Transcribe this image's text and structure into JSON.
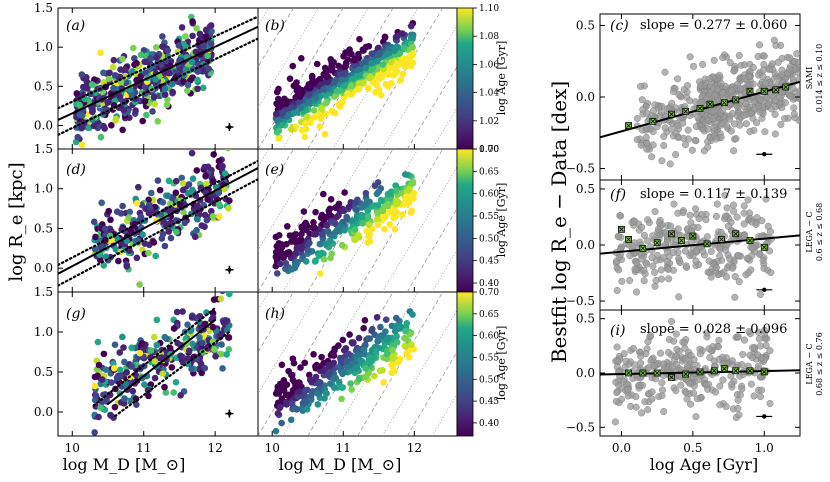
{
  "chart_data": [
    {
      "type": "scatter",
      "panel": "(a)",
      "xlabel": "log M_D [M_⊙]",
      "ylabel": "log R_e [kpc]",
      "xlim": [
        9.8,
        12.6
      ],
      "ylim": [
        -0.3,
        1.5
      ],
      "xticks": [
        "10",
        "11",
        "12"
      ],
      "yticks": [
        "0.0",
        "0.5",
        "1.0",
        "1.5"
      ],
      "color_by": "log Age [Gyr]",
      "series": [
        {
          "name": "best-fit relation",
          "style": "solid",
          "points": [
            [
              9.8,
              0.07
            ],
            [
              12.6,
              1.26
            ]
          ]
        },
        {
          "name": "upper scatter",
          "style": "dotted",
          "points": [
            [
              9.8,
              0.22
            ],
            [
              12.6,
              1.39
            ]
          ]
        },
        {
          "name": "lower scatter",
          "style": "dotted",
          "points": [
            [
              9.8,
              -0.12
            ],
            [
              12.6,
              1.11
            ]
          ]
        },
        {
          "name": "galaxies",
          "x_range": [
            10.0,
            12.4
          ],
          "y_range": [
            -0.3,
            1.4
          ],
          "trend_slope": 0.42
        }
      ],
      "error_bar": {
        "x": 12.2,
        "y": -0.02
      }
    },
    {
      "type": "scatter",
      "panel": "(b)",
      "xlim": [
        9.8,
        12.6
      ],
      "ylim": [
        -0.3,
        1.5
      ],
      "colorbar": {
        "label": "log Age [Gyr]",
        "range": [
          1.0,
          1.1
        ],
        "ticks": [
          "1.00",
          "1.02",
          "1.04",
          "1.06",
          "1.08",
          "1.10"
        ]
      },
      "description_series": [
        {
          "name": "smoothed age map",
          "x_range": [
            10.0,
            12.1
          ],
          "y_range": [
            0.0,
            1.4
          ]
        }
      ]
    },
    {
      "type": "scatter",
      "panel": "(c)",
      "title": "slope = 0.277 ± 0.060",
      "annotation": "SAMI",
      "annotation2": "0.014 ≤ z ≤ 0.10",
      "xlim": [
        -0.15,
        1.25
      ],
      "ylim": [
        -0.58,
        0.58
      ],
      "xticks": [
        "0.0",
        "0.5",
        "1.0"
      ],
      "yticks": [
        "−0.5",
        "0.0",
        "0.5"
      ],
      "slope": 0.277,
      "intercept": -0.24,
      "binned_means": [
        [
          0.05,
          -0.2
        ],
        [
          0.22,
          -0.17
        ],
        [
          0.35,
          -0.12
        ],
        [
          0.45,
          -0.1
        ],
        [
          0.55,
          -0.08
        ],
        [
          0.62,
          -0.05
        ],
        [
          0.72,
          -0.04
        ],
        [
          0.8,
          -0.02
        ],
        [
          0.9,
          0.04
        ],
        [
          1.0,
          0.04
        ],
        [
          1.08,
          0.05
        ],
        [
          1.15,
          0.07
        ]
      ],
      "error_bar": {
        "x": 1.0,
        "y": -0.4
      }
    },
    {
      "type": "scatter",
      "panel": "(d)",
      "xlim": [
        9.8,
        12.6
      ],
      "ylim": [
        -0.3,
        1.5
      ],
      "xticks": [
        "10",
        "11",
        "12"
      ],
      "yticks": [
        "0.0",
        "0.5",
        "1.0",
        "1.5"
      ],
      "series": [
        {
          "name": "best-fit relation",
          "style": "solid",
          "points": [
            [
              9.8,
              -0.07
            ],
            [
              12.6,
              1.26
            ]
          ]
        },
        {
          "name": "upper scatter",
          "style": "dotted",
          "points": [
            [
              9.8,
              0.04
            ],
            [
              12.6,
              1.35
            ]
          ]
        },
        {
          "name": "lower scatter",
          "style": "dotted",
          "points": [
            [
              9.8,
              -0.22
            ],
            [
              12.6,
              1.12
            ]
          ]
        }
      ]
    },
    {
      "type": "scatter",
      "panel": "(e)",
      "xlim": [
        9.8,
        12.6
      ],
      "ylim": [
        -0.3,
        1.5
      ],
      "colorbar": {
        "label": "log Age [Gyr]",
        "range": [
          0.38,
          0.7
        ],
        "ticks": [
          "0.40",
          "0.45",
          "0.50",
          "0.55",
          "0.60",
          "0.65",
          "0.70"
        ]
      }
    },
    {
      "type": "scatter",
      "panel": "(f)",
      "title": "slope = 0.117 ± 0.139",
      "annotation": "LEGA − C",
      "annotation2": "0.6 ≤ z ≤ 0.68",
      "xlim": [
        -0.15,
        1.25
      ],
      "ylim": [
        -0.58,
        0.58
      ],
      "slope": 0.117,
      "intercept": -0.06,
      "binned_means": [
        [
          0.0,
          0.14
        ],
        [
          0.05,
          0.05
        ],
        [
          0.15,
          -0.03
        ],
        [
          0.25,
          0.02
        ],
        [
          0.35,
          0.1
        ],
        [
          0.42,
          0.04
        ],
        [
          0.5,
          0.08
        ],
        [
          0.6,
          0.01
        ],
        [
          0.7,
          0.05
        ],
        [
          0.8,
          0.1
        ],
        [
          0.9,
          0.04
        ],
        [
          1.0,
          -0.02
        ]
      ],
      "error_bar": {
        "x": 1.0,
        "y": -0.4
      }
    },
    {
      "type": "scatter",
      "panel": "(g)",
      "xlim": [
        9.8,
        12.6
      ],
      "ylim": [
        -0.3,
        1.5
      ],
      "xticks": [
        "10",
        "11",
        "12"
      ],
      "yticks": [
        "0.0",
        "0.5",
        "1.0",
        "1.5"
      ],
      "series": [
        {
          "name": "best-fit relation",
          "style": "solid",
          "points": [
            [
              10.5,
              0.1
            ],
            [
              12.0,
              1.15
            ]
          ]
        },
        {
          "name": "upper scatter",
          "style": "dotted",
          "points": [
            [
              10.3,
              0.08
            ],
            [
              12.0,
              1.3
            ]
          ]
        },
        {
          "name": "lower scatter",
          "style": "dotted",
          "points": [
            [
              10.6,
              -0.05
            ],
            [
              12.2,
              1.0
            ]
          ]
        }
      ]
    },
    {
      "type": "scatter",
      "panel": "(h)",
      "xlim": [
        9.8,
        12.6
      ],
      "ylim": [
        -0.3,
        1.5
      ],
      "colorbar": {
        "label": "log Age [Gyr]",
        "range": [
          0.37,
          0.7
        ],
        "ticks": [
          "0.40",
          "0.45",
          "0.50",
          "0.55",
          "0.60",
          "0.65",
          "0.70"
        ]
      }
    },
    {
      "type": "scatter",
      "panel": "(i)",
      "title": "slope = 0.028 ± 0.096",
      "annotation": "LEGA − C",
      "annotation2": "0.68 ≤ z ≤ 0.76",
      "xlim": [
        -0.15,
        1.25
      ],
      "ylim": [
        -0.58,
        0.58
      ],
      "xticks": [
        "0.0",
        "0.5",
        "1.0"
      ],
      "yticks": [
        "−0.5",
        "0.0",
        "0.5"
      ],
      "slope": 0.028,
      "intercept": -0.01,
      "binned_means": [
        [
          0.05,
          0.0
        ],
        [
          0.15,
          0.0
        ],
        [
          0.25,
          0.0
        ],
        [
          0.35,
          -0.04
        ],
        [
          0.45,
          -0.01
        ],
        [
          0.55,
          0.01
        ],
        [
          0.65,
          0.02
        ],
        [
          0.72,
          0.04
        ],
        [
          0.8,
          0.02
        ],
        [
          0.9,
          0.02
        ],
        [
          1.0,
          0.01
        ]
      ],
      "error_bar": {
        "x": 1.0,
        "y": -0.4
      }
    }
  ],
  "labels": {
    "left_xlabel": "log M_D [M_⊙]",
    "left_ylabel": "log R_e [kpc]",
    "right_ylabel": "Bestfit  log R_e  −  Data [dex]",
    "right_xlabel": "log Age [Gyr]",
    "colorbar_label": "log Age [Gyr]"
  }
}
